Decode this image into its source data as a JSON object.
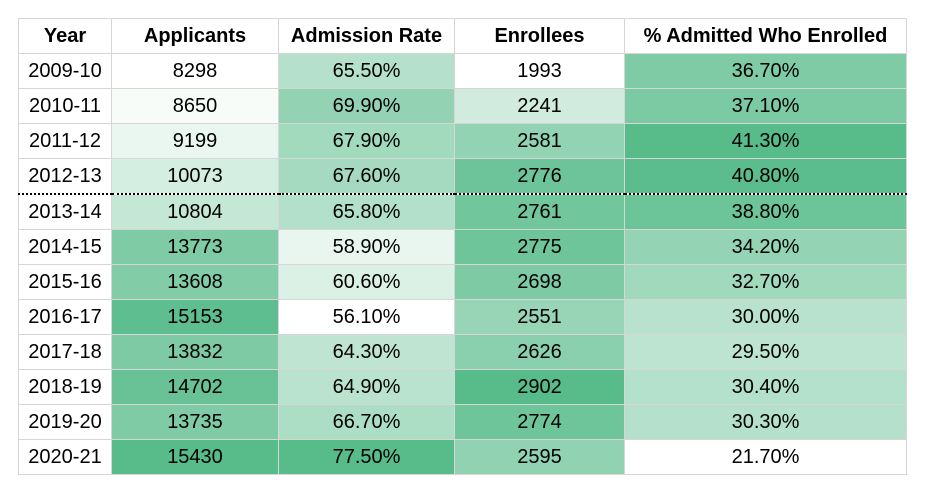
{
  "chart_data": {
    "type": "table",
    "columns": [
      "Year",
      "Applicants",
      "Admission Rate",
      "Enrollees",
      "% Admitted Who Enrolled"
    ],
    "rows": [
      [
        "2009-10",
        "8298",
        "65.50%",
        "1993",
        "36.70%"
      ],
      [
        "2010-11",
        "8650",
        "69.90%",
        "2241",
        "37.10%"
      ],
      [
        "2011-12",
        "9199",
        "67.90%",
        "2581",
        "41.30%"
      ],
      [
        "2012-13",
        "10073",
        "67.60%",
        "2776",
        "40.80%"
      ],
      [
        "2013-14",
        "10804",
        "65.80%",
        "2761",
        "38.80%"
      ],
      [
        "2014-15",
        "13773",
        "58.90%",
        "2775",
        "34.20%"
      ],
      [
        "2015-16",
        "13608",
        "60.60%",
        "2698",
        "32.70%"
      ],
      [
        "2016-17",
        "15153",
        "56.10%",
        "2551",
        "30.00%"
      ],
      [
        "2017-18",
        "13832",
        "64.30%",
        "2626",
        "29.50%"
      ],
      [
        "2018-19",
        "14702",
        "64.90%",
        "2902",
        "30.40%"
      ],
      [
        "2019-20",
        "13735",
        "66.70%",
        "2774",
        "30.30%"
      ],
      [
        "2020-21",
        "15430",
        "77.50%",
        "2595",
        "21.70%"
      ]
    ],
    "heatmap": {
      "colormap": [
        "#ffffff",
        "#57bb8a"
      ],
      "columns_colored": [
        1,
        2,
        3,
        4
      ],
      "per_column_scale": true
    },
    "divider_after_row": "2012-13"
  }
}
